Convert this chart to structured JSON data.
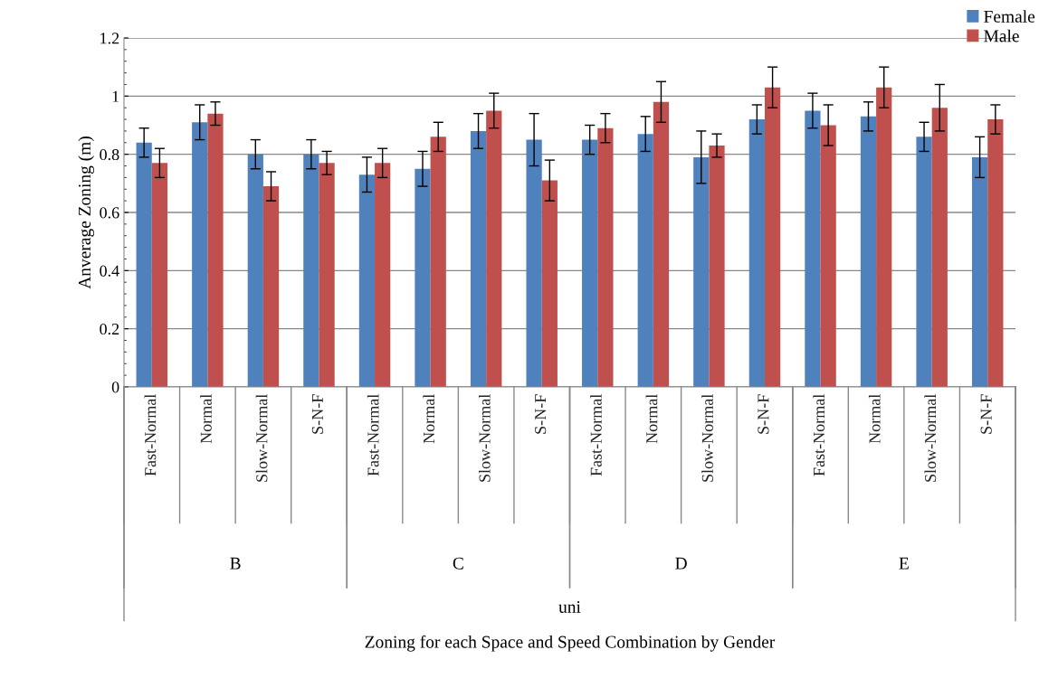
{
  "chart_data": {
    "type": "bar",
    "ylabel": "Anverage Zoning (m)",
    "categories": [
      "Fast-Normal",
      "Normal",
      "Slow-Normal",
      "S-N-F",
      "Fast-Normal",
      "Normal",
      "Slow-Normal",
      "S-N-F",
      "Fast-Normal",
      "Normal",
      "Slow-Normal",
      "S-N-F",
      "Fast-Normal",
      "Normal",
      "Slow-Normal",
      "S-N-F"
    ],
    "series": [
      {
        "name": "Female",
        "color": "#4f81bd",
        "values": [
          0.84,
          0.91,
          0.8,
          0.8,
          0.73,
          0.75,
          0.88,
          0.85,
          0.85,
          0.87,
          0.79,
          0.92,
          0.95,
          0.93,
          0.86,
          0.79
        ],
        "errors": [
          0.05,
          0.06,
          0.05,
          0.05,
          0.06,
          0.06,
          0.06,
          0.09,
          0.05,
          0.06,
          0.09,
          0.05,
          0.06,
          0.05,
          0.05,
          0.07
        ]
      },
      {
        "name": "Male",
        "color": "#c0504d",
        "values": [
          0.77,
          0.94,
          0.69,
          0.77,
          0.77,
          0.86,
          0.95,
          0.71,
          0.89,
          0.98,
          0.83,
          1.03,
          0.9,
          1.03,
          0.96,
          0.92
        ],
        "errors": [
          0.05,
          0.04,
          0.05,
          0.04,
          0.05,
          0.05,
          0.06,
          0.07,
          0.05,
          0.07,
          0.04,
          0.07,
          0.07,
          0.07,
          0.08,
          0.05
        ]
      }
    ],
    "annotations": [
      "B",
      "C",
      "D",
      "E",
      "uni",
      "Zoning for each Space and Speed Combination by Gender"
    ],
    "ylim": [
      0,
      1.2
    ],
    "yticks": [
      0,
      0.2,
      0.4,
      0.6,
      0.8,
      1,
      1.2
    ],
    "grid": "y",
    "legend": "top right"
  }
}
